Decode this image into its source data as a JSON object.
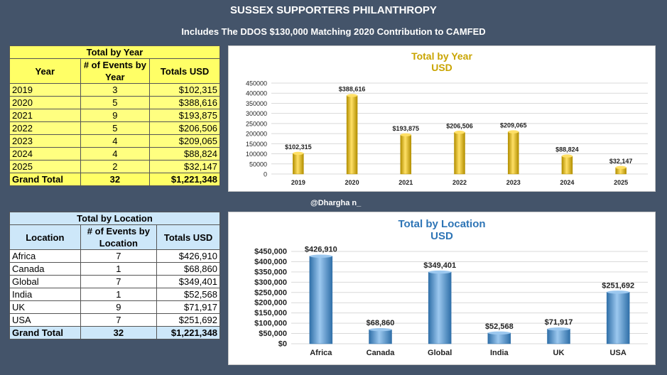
{
  "header": {
    "title": "SUSSEX SUPPORTERS PHILANTHROPY",
    "subtitle": "Includes The DDOS $130,000 Matching 2020 Contribution to CAMFED",
    "handle": "@Dhargha n_"
  },
  "year_table": {
    "caption": "Total by Year",
    "col_year": "Year",
    "col_events": "# of Events by Year",
    "col_totals": "Totals USD",
    "rows": [
      {
        "year": "2019",
        "events": "3",
        "total": "$102,315"
      },
      {
        "year": "2020",
        "events": "5",
        "total": "$388,616"
      },
      {
        "year": "2021",
        "events": "9",
        "total": "$193,875"
      },
      {
        "year": "2022",
        "events": "5",
        "total": "$206,506"
      },
      {
        "year": "2023",
        "events": "4",
        "total": "$209,065"
      },
      {
        "year": "2024",
        "events": "4",
        "total": "$88,824"
      },
      {
        "year": "2025",
        "events": "2",
        "total": "$32,147"
      }
    ],
    "grand_label": "Grand Total",
    "grand_events": "32",
    "grand_total": "$1,221,348"
  },
  "location_table": {
    "caption": "Total by Location",
    "col_location": "Location",
    "col_events": "# of Events by Location",
    "col_totals": "Totals USD",
    "rows": [
      {
        "location": "Africa",
        "events": "7",
        "total": "$426,910"
      },
      {
        "location": "Canada",
        "events": "1",
        "total": "$68,860"
      },
      {
        "location": "Global",
        "events": "7",
        "total": "$349,401"
      },
      {
        "location": "India",
        "events": "1",
        "total": "$52,568"
      },
      {
        "location": "UK",
        "events": "9",
        "total": "$71,917"
      },
      {
        "location": "USA",
        "events": "7",
        "total": "$251,692"
      }
    ],
    "grand_label": "Grand Total",
    "grand_events": "32",
    "grand_total": "$1,221,348"
  },
  "colors": {
    "background": "#44546a",
    "year_bar": "#f2c200",
    "year_title": "#c9a400",
    "location_bar": "#5b9bd5",
    "location_title": "#2e75b6",
    "year_table_fill": "#ffff80",
    "location_table_header": "#cde7f9"
  },
  "chart_data": [
    {
      "type": "bar",
      "title": "Total by Year",
      "subtitle": "USD",
      "categories": [
        "2019",
        "2020",
        "2021",
        "2022",
        "2023",
        "2024",
        "2025"
      ],
      "values": [
        102315,
        388616,
        193875,
        206506,
        209065,
        88824,
        32147
      ],
      "data_labels": [
        "$102,315",
        "$388,616",
        "$193,875",
        "$206,506",
        "$209,065",
        "$88,824",
        "$32,147"
      ],
      "yticks": [
        "0",
        "50000",
        "100000",
        "150000",
        "200000",
        "250000",
        "300000",
        "350000",
        "400000",
        "450000"
      ],
      "ylim": [
        0,
        450000
      ],
      "grid": true,
      "legend": "none"
    },
    {
      "type": "bar",
      "title": "Total by Location",
      "subtitle": "USD",
      "categories": [
        "Africa",
        "Canada",
        "Global",
        "India",
        "UK",
        "USA"
      ],
      "values": [
        426910,
        68860,
        349401,
        52568,
        71917,
        251692
      ],
      "data_labels": [
        "$426,910",
        "$68,860",
        "$349,401",
        "$52,568",
        "$71,917",
        "$251,692"
      ],
      "yticks": [
        "$0",
        "$50,000",
        "$100,000",
        "$150,000",
        "$200,000",
        "$250,000",
        "$300,000",
        "$350,000",
        "$400,000",
        "$450,000"
      ],
      "ylim": [
        0,
        450000
      ],
      "grid": true,
      "legend": "none"
    }
  ]
}
